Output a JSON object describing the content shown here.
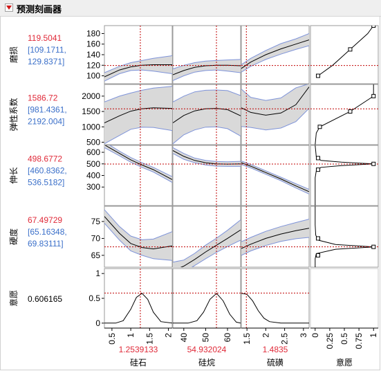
{
  "window": {
    "title": "预测刻画器"
  },
  "colors": {
    "current": "#e02a39",
    "interval": "#3a6fc9",
    "curve": "#000000",
    "band_fill": "#d9d9d9",
    "band_edge": "#7e93d9",
    "crosshair": "#c00000"
  },
  "responses": [
    {
      "name": "磨损",
      "value": "119.5041",
      "ci": [
        "[109.1711,",
        "129.8371]"
      ]
    },
    {
      "name": "弹性系数",
      "value": "1586.72",
      "ci": [
        "[981.4361,",
        "2192.004]"
      ]
    },
    {
      "name": "伸长",
      "value": "498.6772",
      "ci": [
        "[460.8362,",
        "536.5182]"
      ]
    },
    {
      "name": "硬度",
      "value": "67.49729",
      "ci": [
        "[65.16348,",
        "69.83111]"
      ]
    },
    {
      "name": "意愿",
      "value": "0.606165",
      "ci": []
    }
  ],
  "factors": [
    {
      "name": "硅石",
      "value": "1.2539133"
    },
    {
      "name": "硅烷",
      "value": "54.932024"
    },
    {
      "name": "硫磺",
      "value": "1.4835"
    }
  ],
  "desirability_col": {
    "name": "意愿"
  },
  "chart_data": {
    "type": "line",
    "description_free": true,
    "factor_ranges": [
      [
        0.3,
        2.1
      ],
      [
        35,
        66
      ],
      [
        1.35,
        3.15
      ]
    ],
    "factor_ticks": [
      [
        "0.5",
        "1",
        "1.5",
        "2"
      ],
      [
        "40",
        "50",
        "60"
      ],
      [
        "1.5",
        "2",
        "2.5",
        "3"
      ]
    ],
    "factor_tick_values": [
      [
        0.5,
        1,
        1.5,
        2
      ],
      [
        40,
        50,
        60
      ],
      [
        1.5,
        2,
        2.5,
        3
      ]
    ],
    "factor_current": [
      1.2539133,
      54.932024,
      1.4835
    ],
    "desirability_axis": {
      "ticks": [
        "0",
        "0.25",
        "0.5",
        "0.75",
        "1"
      ],
      "values": [
        0,
        0.25,
        0.5,
        0.75,
        1
      ],
      "range": [
        -0.08,
        1.08
      ]
    },
    "response_ranges": [
      [
        85,
        195
      ],
      [
        420,
        2380
      ],
      [
        140,
        660
      ],
      [
        61.5,
        79.5
      ],
      [
        -0.1,
        1.1
      ]
    ],
    "response_ticks": [
      [
        100,
        120,
        140,
        160,
        180
      ],
      [
        500,
        1000,
        1500,
        2000
      ],
      [
        300,
        400,
        500,
        600
      ],
      [
        65,
        70,
        75
      ],
      [
        0,
        0.5,
        1
      ]
    ],
    "response_current": [
      119.5041,
      1586.72,
      498.6772,
      67.49729,
      0.606165
    ],
    "profiles": [
      [
        {
          "x": [
            0.3,
            0.7,
            1.0,
            1.3,
            1.6,
            2.1
          ],
          "y": [
            98,
            111,
            117,
            120,
            121,
            121
          ],
          "lo": [
            90,
            104,
            110,
            111,
            109,
            104
          ],
          "hi": [
            106,
            118,
            125,
            129,
            133,
            138
          ]
        },
        {
          "x": [
            35,
            40,
            45,
            50,
            55,
            60,
            66
          ],
          "y": [
            102,
            110,
            116,
            119,
            120,
            120,
            119
          ],
          "lo": [
            91,
            100,
            107,
            110,
            111,
            109,
            106
          ],
          "hi": [
            113,
            120,
            125,
            128,
            129,
            130,
            131
          ]
        },
        {
          "x": [
            1.35,
            1.6,
            2.0,
            2.4,
            2.8,
            3.15
          ],
          "y": [
            114,
            126,
            140,
            151,
            160,
            168
          ],
          "lo": [
            107,
            118,
            131,
            141,
            150,
            157
          ],
          "hi": [
            121,
            133,
            148,
            161,
            170,
            180
          ]
        }
      ],
      [
        {
          "x": [
            0.3,
            0.7,
            1.0,
            1.3,
            1.6,
            2.1
          ],
          "y": [
            1130,
            1360,
            1510,
            1590,
            1620,
            1600
          ],
          "lo": [
            450,
            720,
            920,
            990,
            980,
            880
          ],
          "hi": [
            1810,
            2000,
            2100,
            2190,
            2260,
            2320
          ]
        },
        {
          "x": [
            35,
            40,
            45,
            50,
            55,
            60,
            66
          ],
          "y": [
            1130,
            1370,
            1520,
            1590,
            1600,
            1560,
            1360
          ],
          "lo": [
            450,
            740,
            900,
            990,
            1000,
            940,
            700
          ],
          "hi": [
            1810,
            2000,
            2140,
            2190,
            2200,
            2180,
            2020
          ]
        },
        {
          "x": [
            1.35,
            1.6,
            2.0,
            2.4,
            2.8,
            3.15
          ],
          "y": [
            1620,
            1470,
            1380,
            1450,
            1720,
            2300
          ],
          "lo": [
            1010,
            980,
            900,
            960,
            1170,
            1600
          ],
          "hi": [
            2230,
            1960,
            1860,
            1940,
            2270,
            2400
          ]
        }
      ],
      [
        {
          "x": [
            0.3,
            0.7,
            1.0,
            1.3,
            1.6,
            2.1
          ],
          "y": [
            665,
            590,
            535,
            490,
            450,
            365
          ],
          "lo": [
            640,
            570,
            515,
            470,
            430,
            340
          ],
          "hi": [
            690,
            610,
            555,
            510,
            470,
            390
          ]
        },
        {
          "x": [
            35,
            40,
            45,
            50,
            55,
            60,
            66
          ],
          "y": [
            615,
            565,
            530,
            510,
            500,
            498,
            500
          ],
          "lo": [
            590,
            540,
            510,
            490,
            480,
            478,
            478
          ],
          "hi": [
            640,
            590,
            550,
            530,
            520,
            518,
            522
          ]
        },
        {
          "x": [
            1.35,
            1.6,
            2.0,
            2.4,
            2.8,
            3.15
          ],
          "y": [
            510,
            480,
            425,
            370,
            310,
            260
          ],
          "lo": [
            495,
            465,
            410,
            355,
            292,
            240
          ],
          "hi": [
            525,
            495,
            440,
            385,
            328,
            280
          ]
        }
      ],
      [
        {
          "x": [
            0.3,
            0.7,
            1.0,
            1.3,
            1.6,
            2.1
          ],
          "y": [
            76.5,
            71.5,
            68.5,
            67.3,
            66.9,
            67.8
          ],
          "lo": [
            74.5,
            69.5,
            66.3,
            65.0,
            64.0,
            63.5
          ],
          "hi": [
            78.5,
            73.5,
            70.7,
            69.6,
            69.8,
            72.0
          ]
        },
        {
          "x": [
            35,
            40,
            45,
            50,
            55,
            60,
            66
          ],
          "y": [
            60.5,
            61.8,
            63.8,
            66.0,
            68.0,
            70.0,
            72.5
          ],
          "lo": [
            58.0,
            60.0,
            62.0,
            64.0,
            65.9,
            67.6,
            69.5
          ],
          "hi": [
            63.0,
            63.6,
            65.6,
            68.0,
            70.1,
            72.4,
            75.5
          ]
        },
        {
          "x": [
            1.35,
            1.6,
            2.0,
            2.4,
            2.8,
            3.15
          ],
          "y": [
            67.0,
            68.3,
            70.0,
            71.3,
            72.3,
            73.0
          ],
          "lo": [
            65.0,
            66.3,
            67.9,
            69.1,
            69.9,
            70.3
          ],
          "hi": [
            69.0,
            70.3,
            72.1,
            73.5,
            74.7,
            75.7
          ]
        }
      ],
      [
        {
          "x": [
            0.3,
            0.6,
            0.8,
            1.0,
            1.15,
            1.3,
            1.45,
            1.6,
            1.8,
            2.1
          ],
          "y": [
            0.0,
            0.0,
            0.05,
            0.28,
            0.52,
            0.6,
            0.48,
            0.22,
            0.03,
            0.0
          ]
        },
        {
          "x": [
            35,
            42,
            46,
            49,
            52,
            55,
            58,
            61,
            64,
            66
          ],
          "y": [
            0.0,
            0.0,
            0.05,
            0.22,
            0.48,
            0.6,
            0.45,
            0.18,
            0.02,
            0.0
          ]
        },
        {
          "x": [
            1.35,
            1.5,
            1.65,
            1.8,
            1.95,
            2.1,
            2.4,
            3.15
          ],
          "y": [
            0.6,
            0.58,
            0.45,
            0.25,
            0.1,
            0.03,
            0.0,
            0.0
          ]
        }
      ]
    ],
    "desirability_functions": [
      {
        "resp": [
          100,
          120,
          140,
          160,
          180,
          195
        ],
        "des": [
          0.05,
          0.3,
          0.5,
          0.7,
          0.9,
          1.0
        ],
        "markers": [
          [
            100,
            0.05
          ],
          [
            150,
            0.6
          ],
          [
            195,
            1.0
          ]
        ]
      },
      {
        "resp": [
          420,
          800,
          1000,
          1500,
          2000,
          2380
        ],
        "des": [
          0.0,
          0.02,
          0.08,
          0.6,
          1.0,
          1.0
        ],
        "markers": [
          [
            1000,
            0.08
          ],
          [
            1500,
            0.6
          ],
          [
            2000,
            1.0
          ]
        ]
      },
      {
        "resp": [
          140,
          380,
          440,
          470,
          485,
          500,
          515,
          530,
          560,
          660
        ],
        "des": [
          0.0,
          0.0,
          0.02,
          0.1,
          0.45,
          1.0,
          0.45,
          0.1,
          0.02,
          0.0
        ],
        "markers": [
          [
            450,
            0.05
          ],
          [
            500,
            1.0
          ],
          [
            550,
            0.05
          ]
        ]
      },
      {
        "resp": [
          61.5,
          64.0,
          65.5,
          66.8,
          67.5,
          68.2,
          69.5,
          71.0,
          74.0,
          79.5
        ],
        "des": [
          0.0,
          0.0,
          0.02,
          0.35,
          1.0,
          0.35,
          0.05,
          0.01,
          0.0,
          0.0
        ],
        "markers": [
          [
            65.0,
            0.05
          ],
          [
            67.5,
            1.0
          ],
          [
            70.0,
            0.05
          ]
        ]
      }
    ]
  }
}
